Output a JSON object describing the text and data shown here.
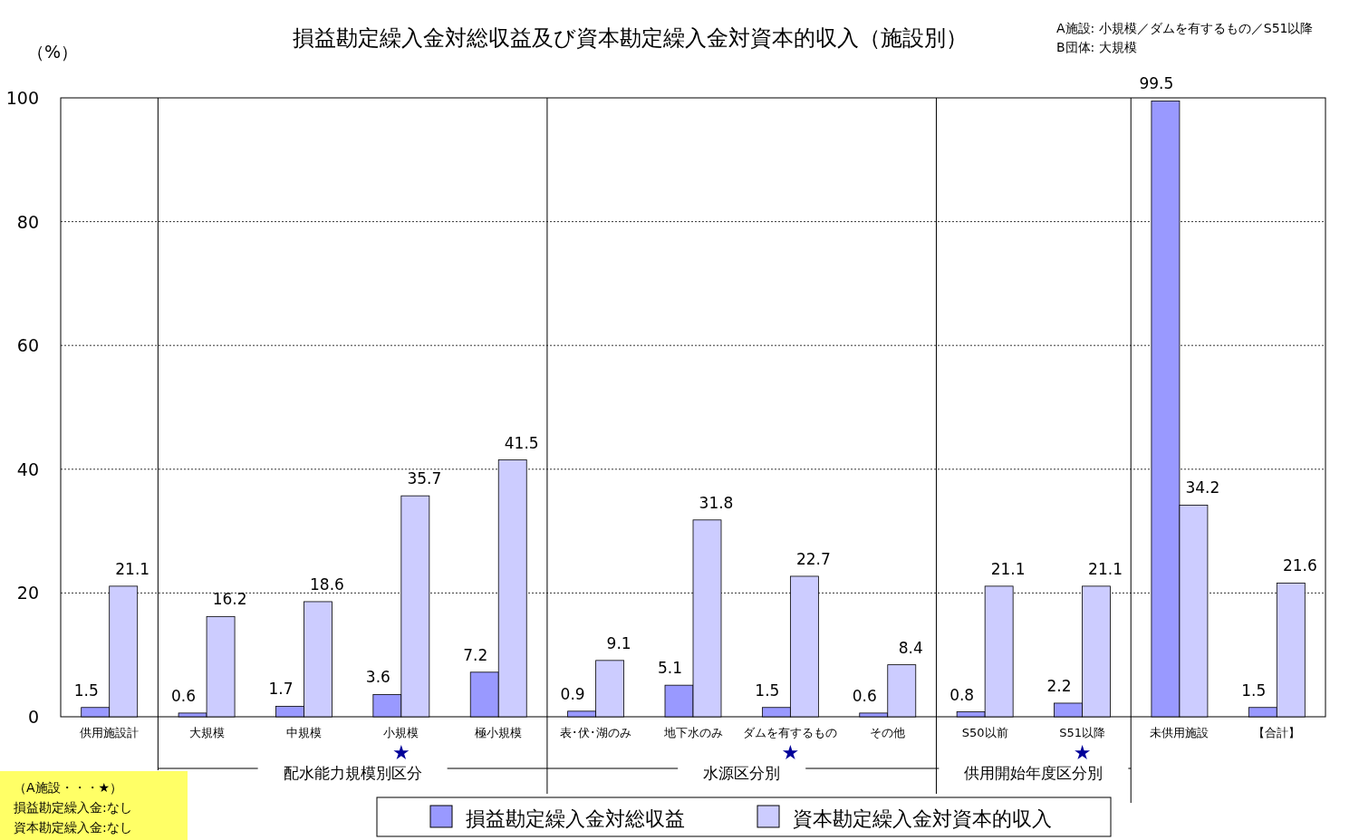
{
  "chart_data": {
    "type": "bar",
    "title": "損益勘定繰入金対総収益及び資本勘定繰入金対資本的収入（施設別）",
    "ylabel": "（%）",
    "categories": [
      "供用施設計",
      "大規模",
      "中規模",
      "小規模",
      "極小規模",
      "表･伏･湖のみ",
      "地下水のみ",
      "ダムを有するもの",
      "その他",
      "S50以前",
      "S51以降",
      "未供用施設",
      "【合計】"
    ],
    "series": [
      {
        "name": "損益勘定繰入金対総収益",
        "color": "#9999ff",
        "values": [
          1.5,
          0.6,
          1.7,
          3.6,
          7.2,
          0.9,
          5.1,
          1.5,
          0.6,
          0.8,
          2.2,
          99.5,
          1.5
        ]
      },
      {
        "name": "資本勘定繰入金対資本的収入",
        "color": "#ccccff",
        "values": [
          21.1,
          16.2,
          18.6,
          35.7,
          41.5,
          9.1,
          31.8,
          22.7,
          8.4,
          21.1,
          21.1,
          34.2,
          21.6
        ]
      }
    ],
    "ylim": [
      0,
      100
    ],
    "yticks": [
      0,
      20,
      40,
      60,
      80,
      100
    ],
    "grid": "y",
    "legend": "bottom",
    "data_labels": true,
    "annotations": [
      "A施設: 小規模／ダムを有するもの／S51以降",
      "B団体: 大規模",
      "（A施設・・・★）",
      "損益勘定繰入金:なし",
      "資本勘定繰入金:なし",
      "配水能力規模別区分",
      "水源区分別",
      "供用開始年度区分別",
      "★",
      "★",
      "★"
    ]
  }
}
